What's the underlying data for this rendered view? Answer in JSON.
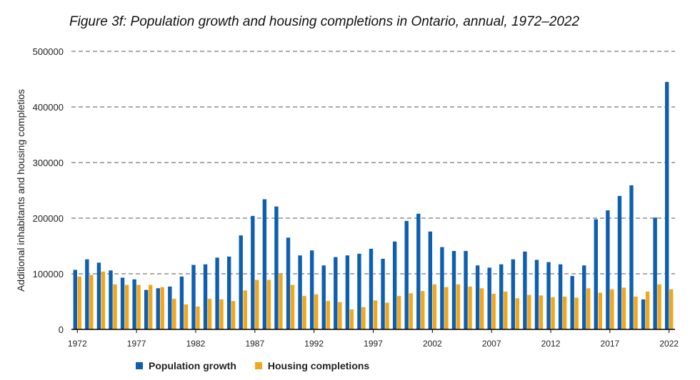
{
  "title": "Figure 3f: Population growth and housing completions in Ontario, annual, 1972–2022",
  "colors": {
    "population": "#0e5fb0",
    "housing": "#f2a71b",
    "grid": "#555555",
    "axis": "#000000"
  },
  "chart_data": {
    "type": "bar",
    "title": "Figure 3f: Population growth and housing completions in Ontario, annual, 1972–2022",
    "xlabel": "",
    "ylabel": "Additional inhabitants and housing completios",
    "ylim": [
      0,
      500000
    ],
    "yticks": [
      "0",
      "100000",
      "200000",
      "300000",
      "400000",
      "500000"
    ],
    "xtick_labels": [
      "1972",
      "1977",
      "1982",
      "1987",
      "1992",
      "1997",
      "2002",
      "2007",
      "2012",
      "2017",
      "2022"
    ],
    "grid": true,
    "legend_position": "bottom",
    "categories": [
      "1972",
      "1973",
      "1974",
      "1975",
      "1976",
      "1977",
      "1978",
      "1979",
      "1980",
      "1981",
      "1982",
      "1983",
      "1984",
      "1985",
      "1986",
      "1987",
      "1988",
      "1989",
      "1990",
      "1991",
      "1992",
      "1993",
      "1994",
      "1995",
      "1996",
      "1997",
      "1998",
      "1999",
      "2000",
      "2001",
      "2002",
      "2003",
      "2004",
      "2005",
      "2006",
      "2007",
      "2008",
      "2009",
      "2010",
      "2011",
      "2012",
      "2013",
      "2014",
      "2015",
      "2016",
      "2017",
      "2018",
      "2019",
      "2020",
      "2021",
      "2022"
    ],
    "series": [
      {
        "name": "Population growth",
        "values": [
          107000,
          126000,
          120000,
          106000,
          93000,
          90000,
          71000,
          74000,
          77000,
          95000,
          116000,
          117000,
          129000,
          131000,
          169000,
          204000,
          234000,
          221000,
          165000,
          133000,
          142000,
          115000,
          130000,
          133000,
          136000,
          145000,
          127000,
          158000,
          195000,
          208000,
          176000,
          148000,
          141000,
          141000,
          115000,
          111000,
          117000,
          126000,
          140000,
          125000,
          121000,
          117000,
          96000,
          115000,
          198000,
          214000,
          240000,
          259000,
          54000,
          201000,
          445000
        ]
      },
      {
        "name": "Housing completions",
        "values": [
          95000,
          98000,
          104000,
          81000,
          80000,
          80000,
          80000,
          76000,
          55000,
          45000,
          41000,
          55000,
          54000,
          51000,
          70000,
          89000,
          89000,
          100000,
          80000,
          60000,
          63000,
          51000,
          49000,
          36000,
          40000,
          52000,
          48000,
          60000,
          65000,
          69000,
          81000,
          76000,
          81000,
          77000,
          74000,
          64000,
          68000,
          56000,
          62000,
          61000,
          58000,
          59000,
          57000,
          74000,
          66000,
          72000,
          75000,
          59000,
          68000,
          81000,
          72000
        ]
      }
    ]
  }
}
